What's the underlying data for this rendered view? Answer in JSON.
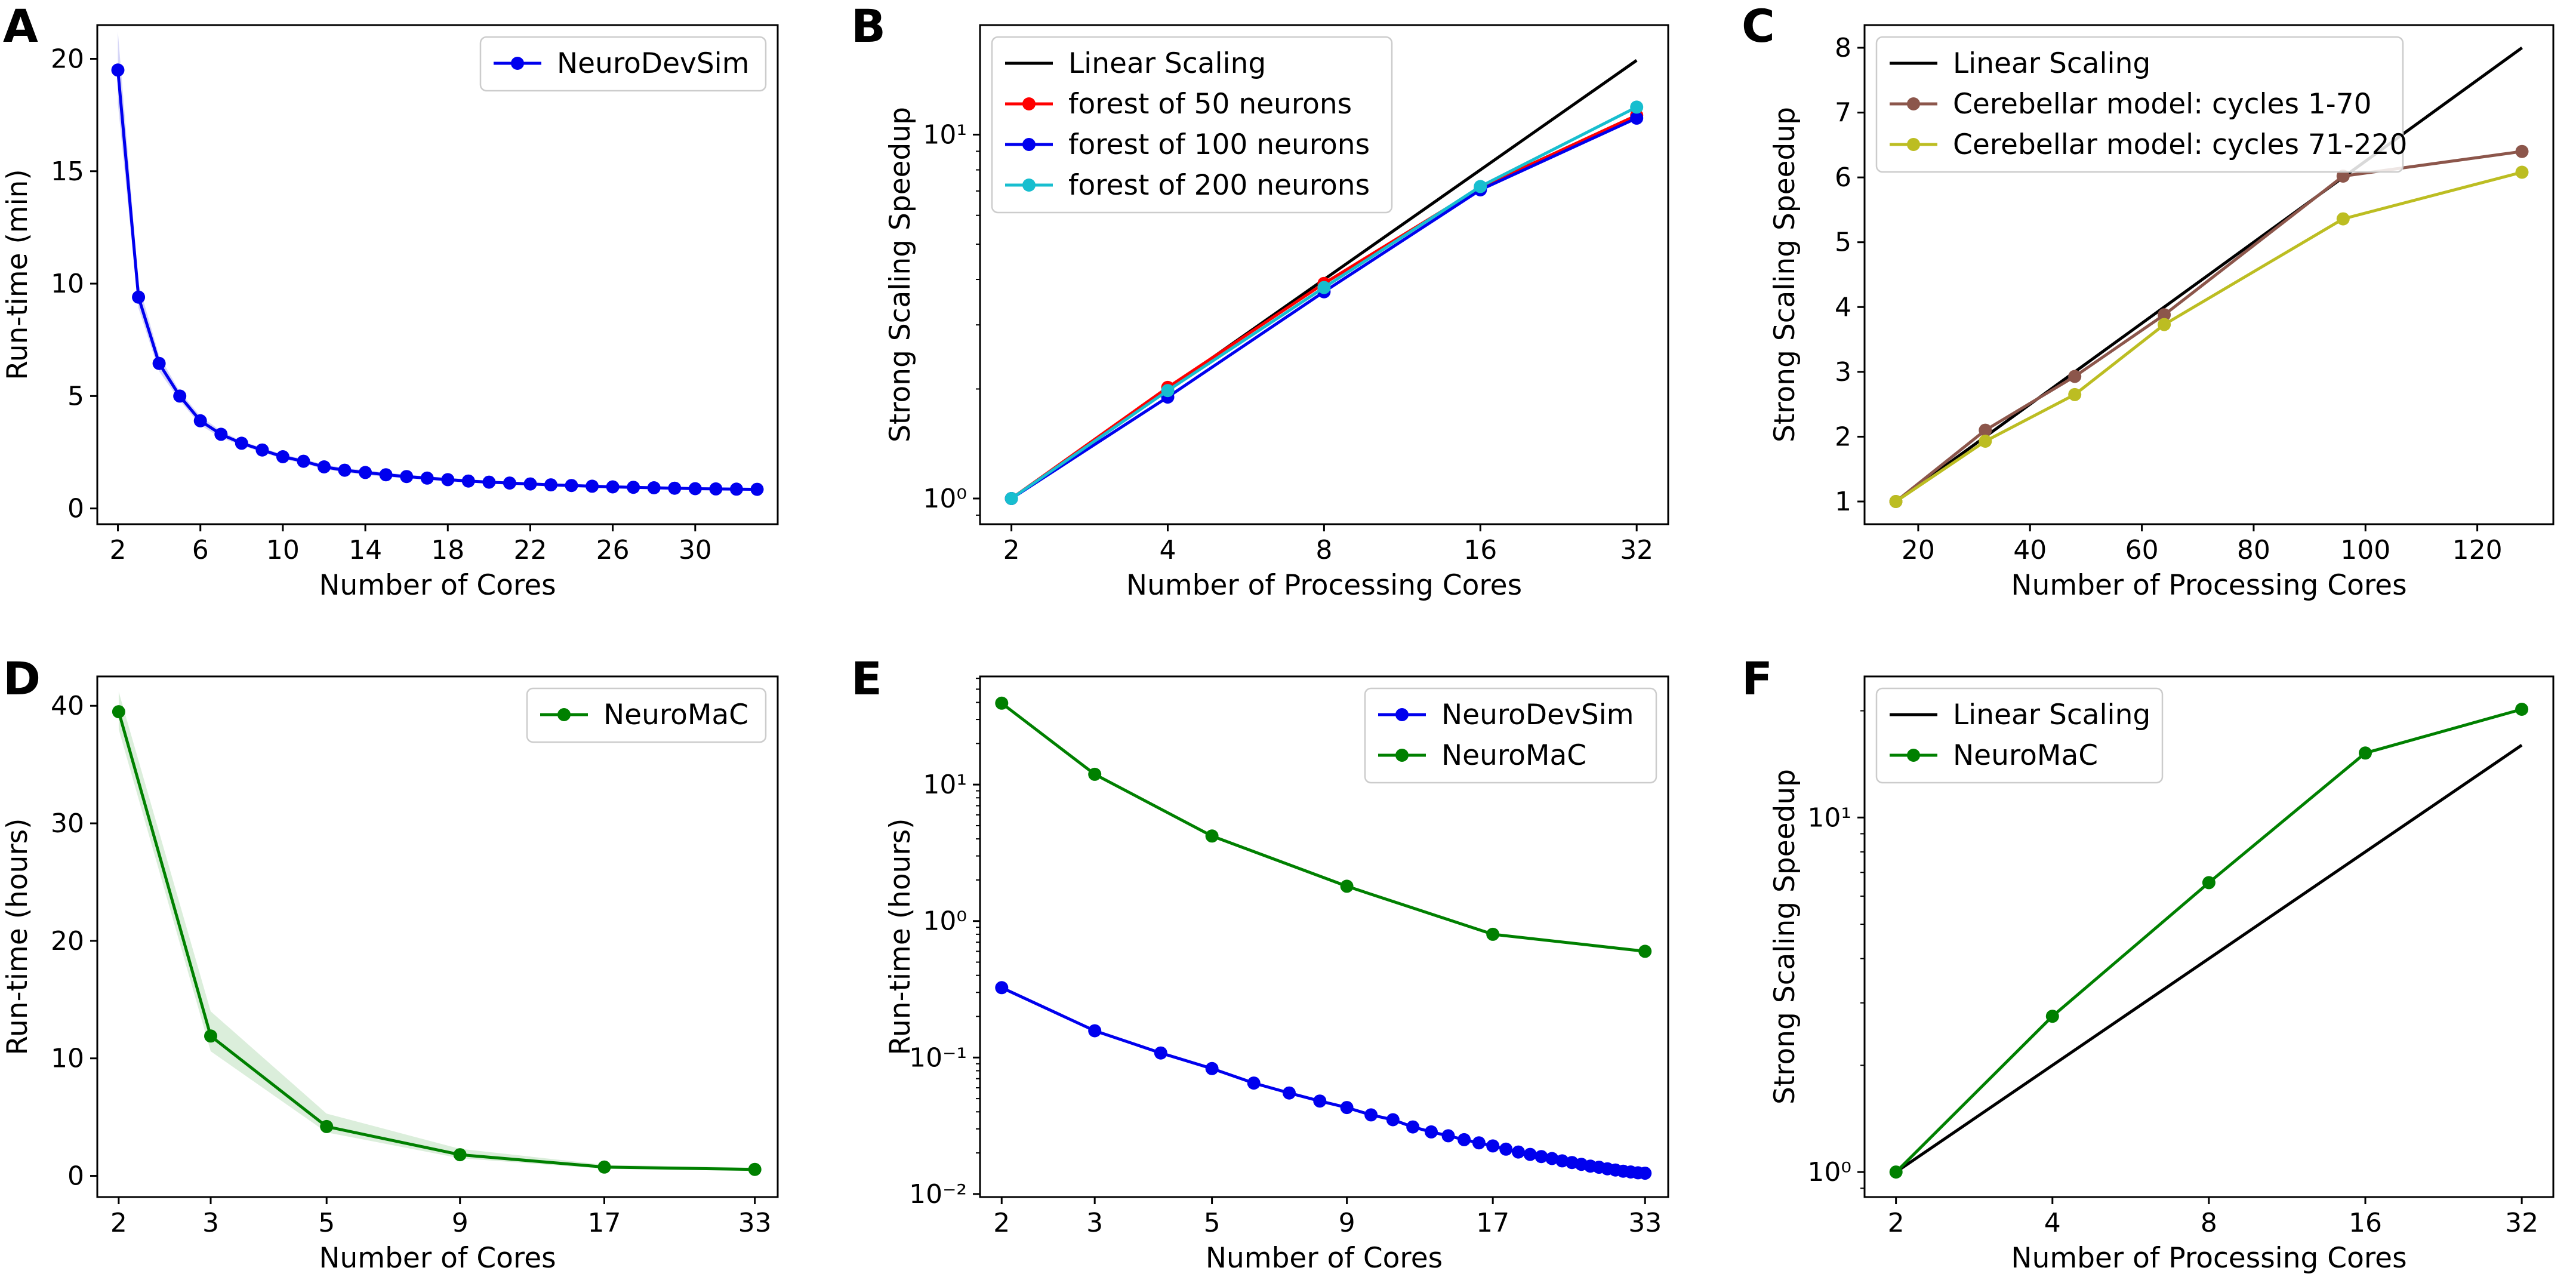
{
  "figure": {
    "panels": [
      "A",
      "B",
      "C",
      "D",
      "E",
      "F"
    ],
    "colors": {
      "neurodevsim": "#0000ee",
      "neuromac": "#008000",
      "linear": "#000000",
      "red": "#ff0000",
      "cyan": "#17becf",
      "brown": "#8c564b",
      "olive": "#bcbd22",
      "band_blue": "#c8c8f4",
      "band_green": "#cfe8cf"
    }
  },
  "chart_data": [
    {
      "panel": "A",
      "type": "line",
      "xlabel": "Number of Cores",
      "ylabel": "Run-time (min)",
      "xscale": "linear",
      "yscale": "linear",
      "xlim": [
        1.0,
        34.0
      ],
      "ylim": [
        -0.7,
        21.5
      ],
      "xticks": [
        2,
        6,
        10,
        14,
        18,
        22,
        26,
        30
      ],
      "yticks": [
        0,
        5,
        10,
        15,
        20
      ],
      "legend": "top-right",
      "series": [
        {
          "name": "NeuroDevSim",
          "color": "neurodevsim",
          "marker": true,
          "band": true,
          "x": [
            2,
            3,
            4,
            5,
            6,
            7,
            8,
            9,
            10,
            11,
            12,
            13,
            14,
            15,
            16,
            17,
            18,
            19,
            20,
            21,
            22,
            23,
            24,
            25,
            26,
            27,
            28,
            29,
            30,
            31,
            32,
            33
          ],
          "y": [
            19.5,
            9.4,
            6.45,
            5.0,
            3.9,
            3.3,
            2.9,
            2.6,
            2.3,
            2.1,
            1.85,
            1.7,
            1.6,
            1.5,
            1.42,
            1.35,
            1.28,
            1.22,
            1.17,
            1.13,
            1.09,
            1.05,
            1.02,
            0.99,
            0.96,
            0.94,
            0.92,
            0.9,
            0.88,
            0.87,
            0.86,
            0.85
          ],
          "band_hi": [
            21.2,
            10.0,
            6.8,
            5.2,
            4.1,
            3.45,
            3.0,
            2.7,
            2.4,
            2.2,
            1.95,
            1.8,
            1.7,
            1.6,
            1.5,
            1.43,
            1.36,
            1.3,
            1.24,
            1.2,
            1.16,
            1.12,
            1.09,
            1.06,
            1.03,
            1.0,
            0.98,
            0.96,
            0.94,
            0.93,
            0.92,
            0.91
          ],
          "band_lo": [
            18.0,
            8.9,
            6.1,
            4.8,
            3.7,
            3.15,
            2.8,
            2.5,
            2.2,
            2.0,
            1.75,
            1.6,
            1.5,
            1.4,
            1.34,
            1.27,
            1.2,
            1.15,
            1.1,
            1.06,
            1.02,
            0.98,
            0.95,
            0.92,
            0.89,
            0.87,
            0.86,
            0.84,
            0.82,
            0.81,
            0.8,
            0.79
          ]
        }
      ]
    },
    {
      "panel": "B",
      "type": "line",
      "xlabel": "Number of Processing Cores",
      "ylabel": "Strong Scaling Speedup",
      "xscale": "log",
      "yscale": "log",
      "xlim": [
        1.74,
        36.8
      ],
      "ylim": [
        0.85,
        20.0
      ],
      "xticks": [
        2,
        4,
        8,
        16,
        32
      ],
      "yticks": [
        1,
        10
      ],
      "ytick_labels": [
        "10^0",
        "10^1"
      ],
      "legend": "top-left",
      "series": [
        {
          "name": "Linear Scaling",
          "color": "linear",
          "marker": false,
          "x": [
            2,
            32
          ],
          "y": [
            1,
            16
          ]
        },
        {
          "name": "forest of 50 neurons",
          "color": "red",
          "marker": true,
          "x": [
            2,
            4,
            8,
            16,
            32
          ],
          "y": [
            1.0,
            2.02,
            3.9,
            7.15,
            11.3
          ]
        },
        {
          "name": "forest of 100 neurons",
          "color": "neurodevsim",
          "marker": true,
          "x": [
            2,
            4,
            8,
            16,
            32
          ],
          "y": [
            1.0,
            1.9,
            3.7,
            7.05,
            11.1
          ]
        },
        {
          "name": "forest of 200 neurons",
          "color": "cyan",
          "marker": true,
          "x": [
            2,
            4,
            8,
            16,
            32
          ],
          "y": [
            1.0,
            1.98,
            3.8,
            7.2,
            11.9
          ]
        }
      ]
    },
    {
      "panel": "C",
      "type": "line",
      "xlabel": "Number of Processing Cores",
      "ylabel": "Strong Scaling Speedup",
      "xscale": "linear",
      "yscale": "linear",
      "xlim": [
        10.4,
        133.6
      ],
      "ylim": [
        0.65,
        8.35
      ],
      "xticks": [
        20,
        40,
        60,
        80,
        100,
        120
      ],
      "yticks": [
        1,
        2,
        3,
        4,
        5,
        6,
        7,
        8
      ],
      "legend": "top-left",
      "series": [
        {
          "name": "Linear Scaling",
          "color": "linear",
          "marker": false,
          "x": [
            16,
            128
          ],
          "y": [
            1,
            8
          ]
        },
        {
          "name": "Cerebellar model: cycles 1-70",
          "color": "brown",
          "marker": true,
          "x": [
            16,
            32,
            48,
            64,
            96,
            128
          ],
          "y": [
            1.0,
            2.1,
            2.93,
            3.88,
            6.02,
            6.4
          ]
        },
        {
          "name": "Cerebellar model: cycles 71-220",
          "color": "olive",
          "marker": true,
          "x": [
            16,
            32,
            48,
            64,
            96,
            128
          ],
          "y": [
            1.0,
            1.93,
            2.65,
            3.73,
            5.36,
            6.08
          ]
        }
      ]
    },
    {
      "panel": "D",
      "type": "line",
      "xlabel": "Number of Cores",
      "ylabel": "Run-time (hours)",
      "xscale": "log",
      "yscale": "linear",
      "xlim": [
        1.82,
        36.5
      ],
      "ylim": [
        -1.8,
        42.5
      ],
      "xticks": [
        2,
        3,
        5,
        9,
        17,
        33
      ],
      "yticks": [
        0,
        10,
        20,
        30,
        40
      ],
      "legend": "top-right",
      "series": [
        {
          "name": "NeuroMaC",
          "color": "neuromac",
          "marker": true,
          "band": true,
          "x": [
            2,
            3,
            5,
            9,
            17,
            33
          ],
          "y": [
            39.5,
            11.9,
            4.2,
            1.8,
            0.75,
            0.55
          ],
          "band_hi": [
            41.2,
            14.0,
            5.3,
            2.3,
            0.95,
            0.7
          ],
          "band_lo": [
            38.0,
            10.6,
            3.7,
            1.5,
            0.6,
            0.45
          ]
        }
      ]
    },
    {
      "panel": "E",
      "type": "line",
      "xlabel": "Number of Cores",
      "ylabel": "Run-time (hours)",
      "xscale": "log",
      "yscale": "log",
      "xlim": [
        1.82,
        36.5
      ],
      "ylim": [
        0.0095,
        62.0
      ],
      "xticks": [
        2,
        3,
        5,
        9,
        17,
        33
      ],
      "yticks": [
        0.01,
        0.1,
        1,
        10
      ],
      "ytick_labels": [
        "10^-2",
        "10^-1",
        "10^0",
        "10^1"
      ],
      "legend": "top-right",
      "series": [
        {
          "name": "NeuroDevSim",
          "color": "neurodevsim",
          "marker": true,
          "x": [
            2,
            3,
            4,
            5,
            6,
            7,
            8,
            9,
            10,
            11,
            12,
            13,
            14,
            15,
            16,
            17,
            18,
            19,
            20,
            21,
            22,
            23,
            24,
            25,
            26,
            27,
            28,
            29,
            30,
            31,
            32,
            33
          ],
          "y": [
            0.325,
            0.157,
            0.108,
            0.083,
            0.065,
            0.055,
            0.048,
            0.043,
            0.038,
            0.035,
            0.031,
            0.0285,
            0.0267,
            0.025,
            0.0237,
            0.0225,
            0.0213,
            0.0203,
            0.0195,
            0.0188,
            0.0182,
            0.0175,
            0.017,
            0.0165,
            0.016,
            0.0157,
            0.0153,
            0.015,
            0.0147,
            0.0145,
            0.0143,
            0.0142
          ]
        },
        {
          "name": "NeuroMaC",
          "color": "neuromac",
          "marker": true,
          "x": [
            2,
            3,
            5,
            9,
            17,
            33
          ],
          "y": [
            39.5,
            11.9,
            4.2,
            1.8,
            0.8,
            0.6
          ]
        }
      ]
    },
    {
      "panel": "F",
      "type": "line",
      "xlabel": "Number of Processing Cores",
      "ylabel": "Strong Scaling Speedup",
      "xscale": "log",
      "yscale": "log",
      "xlim": [
        1.74,
        36.8
      ],
      "ylim": [
        0.85,
        25.0
      ],
      "xticks": [
        2,
        4,
        8,
        16,
        32
      ],
      "yticks": [
        1,
        10
      ],
      "ytick_labels": [
        "10^0",
        "10^1"
      ],
      "legend": "top-left",
      "series": [
        {
          "name": "Linear Scaling",
          "color": "linear",
          "marker": false,
          "x": [
            2,
            32
          ],
          "y": [
            1,
            16
          ]
        },
        {
          "name": "NeuroMaC",
          "color": "neuromac",
          "marker": true,
          "x": [
            2,
            4,
            8,
            16,
            32
          ],
          "y": [
            1.0,
            2.75,
            6.55,
            15.2,
            20.2
          ]
        }
      ]
    }
  ]
}
